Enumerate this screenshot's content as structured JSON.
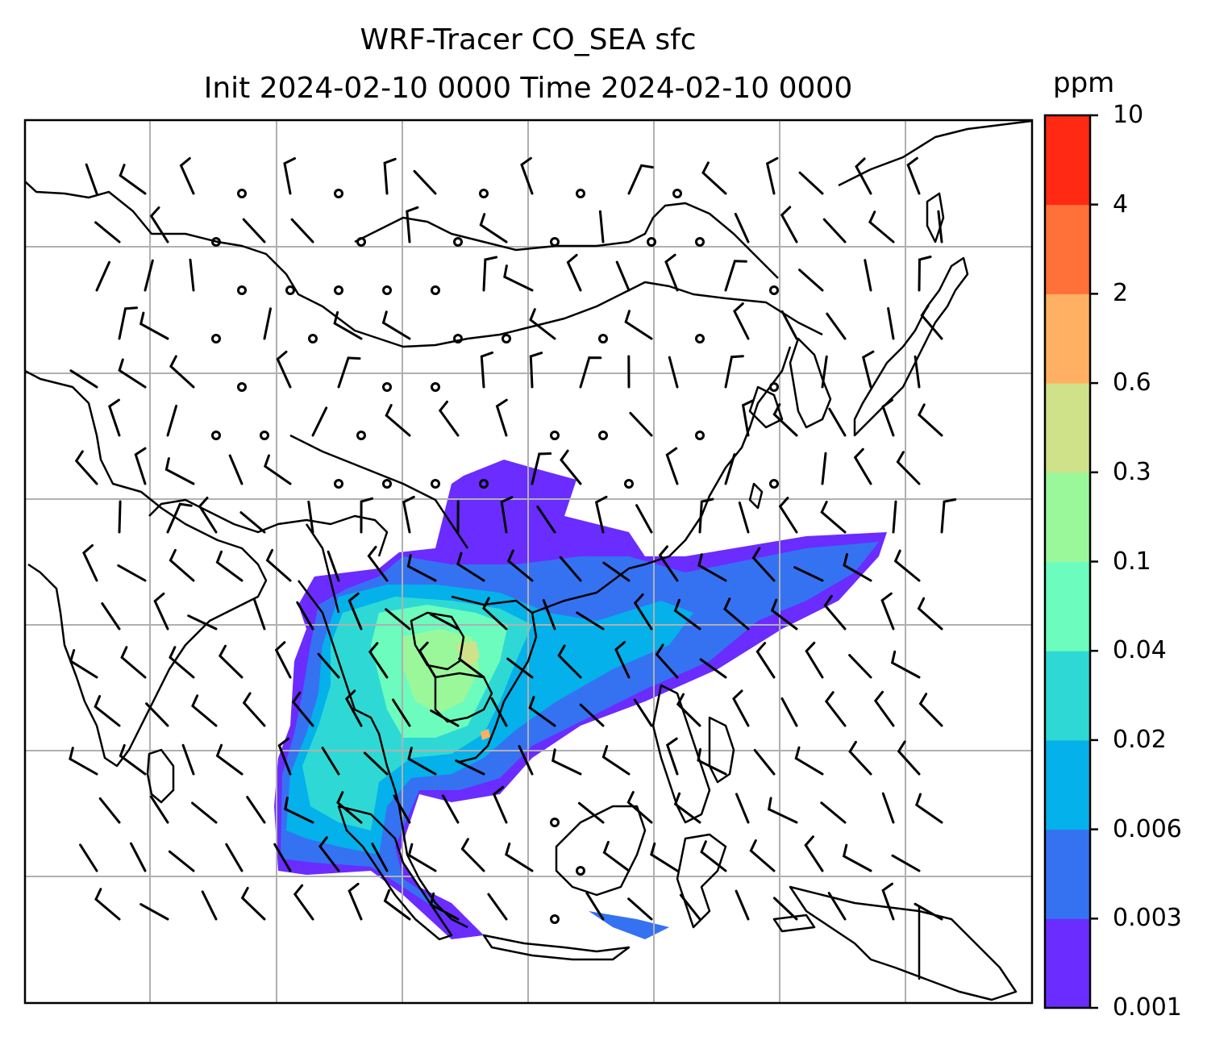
{
  "chart_data": {
    "type": "heatmap",
    "title": "WRF-Tracer CO_SEA sfc",
    "subtitle": "Init 2024-02-10 0000 Time 2024-02-10 0000",
    "colorbar": {
      "label": "ppm",
      "levels": [
        "0.001",
        "0.003",
        "0.006",
        "0.02",
        "0.04",
        "0.1",
        "0.3",
        "0.6",
        "2",
        "4",
        "10"
      ],
      "colors": [
        "#6a2cff",
        "#3572f2",
        "#04b1ea",
        "#2ed9d5",
        "#6bfcbe",
        "#9af89a",
        "#cfe28a",
        "#ffb063",
        "#ff7138",
        "#ff2914"
      ]
    },
    "grid": true,
    "wind_barbs": true,
    "basemap": "coastlines"
  }
}
